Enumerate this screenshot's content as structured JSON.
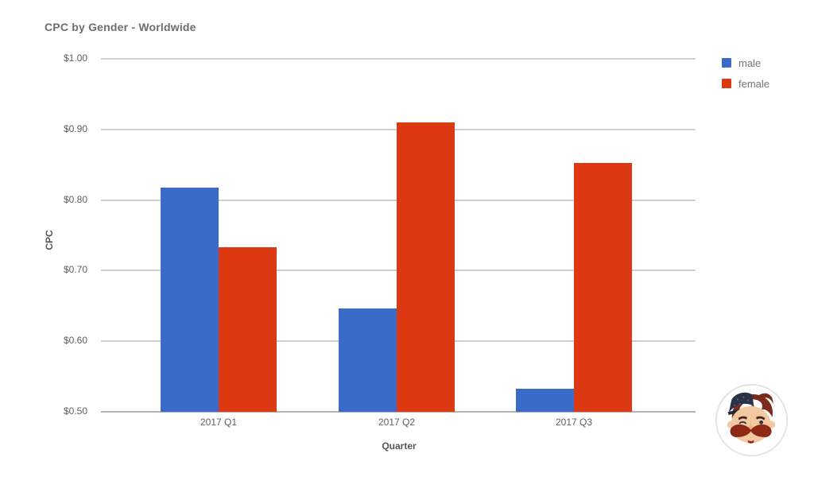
{
  "header": {
    "title": "CPC by Gender - Worldwide"
  },
  "chart_data": {
    "type": "bar",
    "title": "CPC by Gender - Worldwide",
    "xlabel": "Quarter",
    "ylabel": "CPC",
    "categories": [
      "2017 Q1",
      "2017 Q2",
      "2017 Q3"
    ],
    "series": [
      {
        "name": "male",
        "color": "#3b6bc9",
        "values": [
          0.818,
          0.646,
          0.533
        ]
      },
      {
        "name": "female",
        "color": "#dc3912",
        "values": [
          0.733,
          0.91,
          0.852
        ]
      }
    ],
    "y_axis": {
      "min": 0.5,
      "max": 1.0,
      "tick_step": 0.1,
      "tick_values": [
        0.5,
        0.6,
        0.7,
        0.8,
        0.9,
        1.0
      ],
      "tick_labels": [
        "$0.50",
        "$0.60",
        "$0.70",
        "$0.80",
        "$0.90",
        "$1.00"
      ]
    },
    "grid": true,
    "legend_position": "top-right",
    "gridline_color": "#cfcfcf",
    "baseline_color": "#b5b5b5",
    "background": "#ffffff"
  },
  "branding": {
    "mascot_icon": "mustache-man-avatar"
  }
}
